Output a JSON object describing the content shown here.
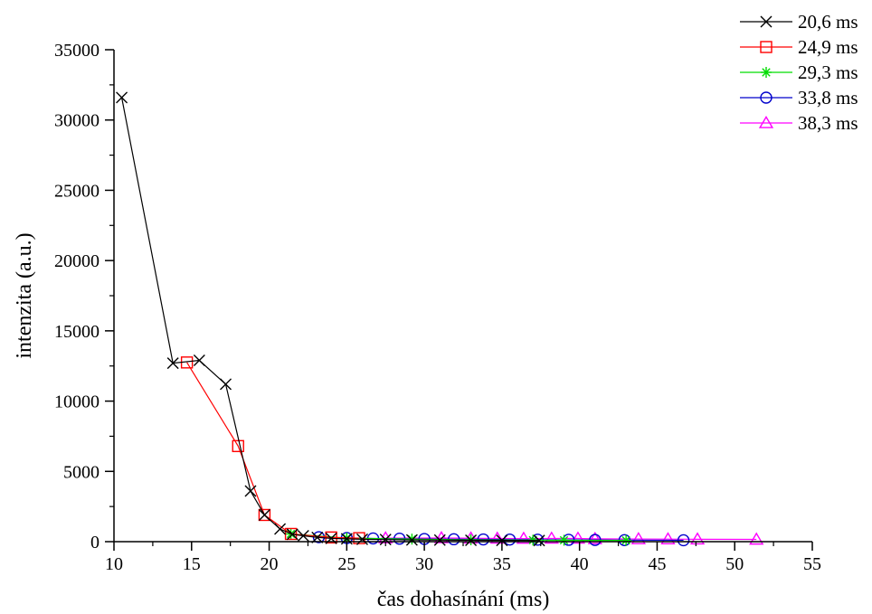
{
  "chart_data": {
    "type": "line",
    "title": "",
    "xlabel": "čas dohasínání (ms)",
    "ylabel": "intenzita (a.u.)",
    "xlim": [
      10,
      55
    ],
    "ylim": [
      0,
      35000
    ],
    "x_ticks": [
      10,
      15,
      20,
      25,
      30,
      35,
      40,
      45,
      50,
      55
    ],
    "y_ticks": [
      0,
      5000,
      10000,
      15000,
      20000,
      25000,
      30000,
      35000
    ],
    "grid": false,
    "legend_position": "top-right",
    "series": [
      {
        "name": "20,6 ms",
        "color": "#000000",
        "marker": "x",
        "x": [
          10.5,
          13.8,
          15.5,
          17.2,
          18.8,
          19.7,
          20.7,
          21.5,
          22.2,
          23.1,
          24.0,
          25.0,
          26.0,
          27.5,
          29.2,
          31.0,
          33.0,
          35.0,
          37.4
        ],
        "y": [
          31600,
          12700,
          12900,
          11200,
          3600,
          1900,
          900,
          520,
          420,
          300,
          230,
          200,
          170,
          150,
          120,
          110,
          100,
          90,
          80
        ]
      },
      {
        "name": "24,9 ms",
        "color": "#ff0000",
        "marker": "square",
        "x": [
          14.7,
          18.0,
          19.7,
          21.4,
          24.0,
          25.8
        ],
        "y": [
          12750,
          6800,
          1900,
          550,
          300,
          250
        ]
      },
      {
        "name": "29,3 ms",
        "color": "#00dd00",
        "marker": "asterisk",
        "x": [
          21.4,
          25.0,
          29.2,
          33.0,
          37.0,
          39.0,
          43.0
        ],
        "y": [
          550,
          250,
          180,
          130,
          110,
          100,
          90
        ]
      },
      {
        "name": "33,8 ms",
        "color": "#0000cc",
        "marker": "circle",
        "x": [
          23.2,
          25.0,
          26.7,
          28.4,
          30.0,
          31.9,
          33.8,
          35.5,
          37.3,
          39.3,
          41.0,
          42.9,
          46.7
        ],
        "y": [
          320,
          260,
          230,
          210,
          190,
          170,
          160,
          150,
          140,
          130,
          120,
          110,
          100
        ]
      },
      {
        "name": "38,3 ms",
        "color": "#ff00ff",
        "marker": "triangle",
        "x": [
          27.5,
          31.1,
          33.0,
          34.7,
          36.4,
          38.2,
          39.9,
          41.0,
          43.8,
          45.7,
          47.6,
          51.4
        ],
        "y": [
          250,
          260,
          240,
          230,
          220,
          230,
          230,
          200,
          190,
          180,
          170,
          160
        ]
      }
    ]
  }
}
